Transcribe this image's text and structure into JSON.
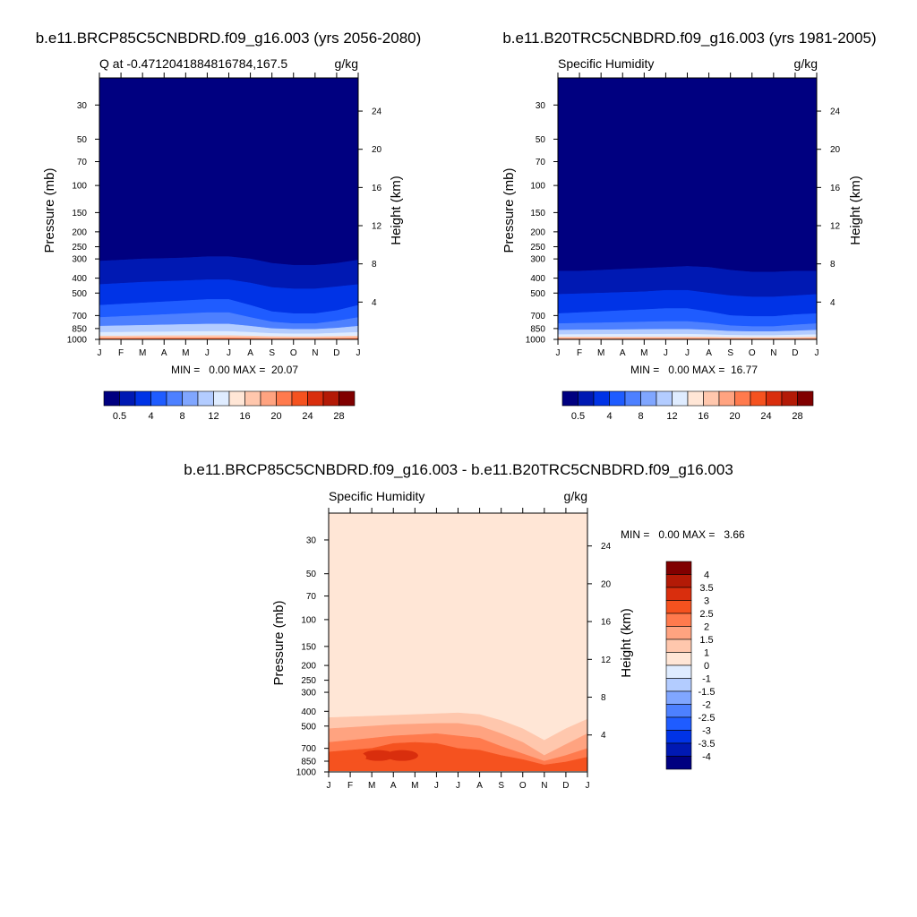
{
  "colors": {
    "q_scale": [
      "#000080",
      "#0019b3",
      "#0033e6",
      "#1f5cff",
      "#4d80ff",
      "#80a6ff",
      "#b3ccff",
      "#dfecff",
      "#ffe6d6",
      "#ffc7ad",
      "#ffa380",
      "#ff7a4d",
      "#f5521f",
      "#d92e0d",
      "#b31a06",
      "#800000"
    ],
    "diff_scale": [
      "#000080",
      "#0019b3",
      "#0033e6",
      "#1f5cff",
      "#4d80ff",
      "#80a6ff",
      "#b3ccff",
      "#dfecff",
      "#ffe6d6",
      "#ffc7ad",
      "#ffa380",
      "#ff7a4d",
      "#f5521f",
      "#d92e0d",
      "#b31a06",
      "#800000"
    ]
  },
  "chart_data": [
    {
      "type": "heatmap",
      "title": "b.e11.BRCP85C5CNBDRD.f09_g16.003 (yrs 2056-2080)",
      "subtitle_left": "Q at -0.4712041884816784,167.5",
      "subtitle_right": "g/kg",
      "ylabel": "Pressure (mb)",
      "ylabel_right": "Height (km)",
      "x": [
        "J",
        "F",
        "M",
        "A",
        "M",
        "J",
        "J",
        "A",
        "S",
        "O",
        "N",
        "D",
        "J"
      ],
      "y_ticks": [
        "30",
        "50",
        "70",
        "100",
        "150",
        "200",
        "250",
        "300",
        "400",
        "500",
        "700",
        "850",
        "1000"
      ],
      "y_right_ticks": [
        "24",
        "20",
        "16",
        "12",
        "8",
        "4"
      ],
      "stats": "MIN =   0.00 MAX =  20.07",
      "colorbar_labels": [
        "0.5",
        "4",
        "8",
        "12",
        "16",
        "20",
        "24",
        "28"
      ],
      "contour_levels_hpa": {
        "top_of_moist": [
          310,
          305,
          300,
          298,
          295,
          290,
          290,
          300,
          320,
          330,
          330,
          320,
          305
        ],
        "c1": [
          440,
          432,
          425,
          420,
          415,
          410,
          410,
          430,
          460,
          470,
          470,
          455,
          440
        ],
        "c2": [
          600,
          590,
          580,
          570,
          560,
          550,
          550,
          600,
          660,
          680,
          680,
          650,
          600
        ],
        "c3": [
          720,
          710,
          700,
          690,
          680,
          670,
          670,
          720,
          770,
          790,
          790,
          760,
          720
        ],
        "c4": [
          820,
          815,
          810,
          805,
          800,
          795,
          795,
          820,
          850,
          860,
          860,
          845,
          820
        ],
        "c5": [
          900,
          898,
          895,
          893,
          890,
          888,
          888,
          900,
          915,
          920,
          920,
          910,
          900
        ],
        "c6": [
          950,
          950,
          948,
          947,
          946,
          945,
          945,
          950,
          958,
          960,
          960,
          955,
          950
        ],
        "c7": [
          980,
          980,
          979,
          978,
          978,
          977,
          977,
          980,
          985,
          986,
          986,
          983,
          980
        ]
      }
    },
    {
      "type": "heatmap",
      "title": "b.e11.B20TRC5CNBDRD.f09_g16.003 (yrs 1981-2005)",
      "subtitle_left": "Specific Humidity",
      "subtitle_right": "g/kg",
      "ylabel": "Pressure (mb)",
      "ylabel_right": "Height (km)",
      "x": [
        "J",
        "F",
        "M",
        "A",
        "M",
        "J",
        "J",
        "A",
        "S",
        "O",
        "N",
        "D",
        "J"
      ],
      "y_ticks": [
        "30",
        "50",
        "70",
        "100",
        "150",
        "200",
        "250",
        "300",
        "400",
        "500",
        "700",
        "850",
        "1000"
      ],
      "y_right_ticks": [
        "24",
        "20",
        "16",
        "12",
        "8",
        "4"
      ],
      "stats": "MIN =   0.00 MAX =  16.77",
      "colorbar_labels": [
        "0.5",
        "4",
        "8",
        "12",
        "16",
        "20",
        "24",
        "28"
      ],
      "contour_levels_hpa": {
        "top_of_moist": [
          360,
          360,
          355,
          350,
          345,
          340,
          335,
          340,
          355,
          365,
          365,
          360,
          360
        ],
        "c1": [
          510,
          505,
          500,
          495,
          490,
          480,
          480,
          500,
          520,
          530,
          530,
          520,
          510
        ],
        "c2": [
          680,
          670,
          660,
          650,
          640,
          630,
          630,
          660,
          700,
          710,
          710,
          690,
          680
        ],
        "c3": [
          790,
          785,
          780,
          775,
          770,
          765,
          765,
          785,
          815,
          825,
          825,
          805,
          790
        ],
        "c4": [
          870,
          868,
          866,
          864,
          862,
          860,
          860,
          870,
          885,
          890,
          890,
          880,
          870
        ],
        "c5": [
          930,
          929,
          928,
          927,
          926,
          925,
          925,
          930,
          940,
          943,
          943,
          937,
          930
        ],
        "c6": [
          965,
          965,
          964,
          964,
          963,
          963,
          963,
          965,
          970,
          971,
          971,
          968,
          965
        ],
        "c7": [
          988,
          988,
          988,
          987,
          987,
          987,
          987,
          988,
          990,
          991,
          991,
          990,
          988
        ]
      }
    },
    {
      "type": "heatmap",
      "title": "b.e11.BRCP85C5CNBDRD.f09_g16.003 - b.e11.B20TRC5CNBDRD.f09_g16.003",
      "subtitle_left": "Specific Humidity",
      "subtitle_right": "g/kg",
      "ylabel": "Pressure (mb)",
      "ylabel_right": "Height (km)",
      "x": [
        "J",
        "F",
        "M",
        "A",
        "M",
        "J",
        "J",
        "A",
        "S",
        "O",
        "N",
        "D",
        "J"
      ],
      "y_ticks": [
        "30",
        "50",
        "70",
        "100",
        "150",
        "200",
        "250",
        "300",
        "400",
        "500",
        "700",
        "850",
        "1000"
      ],
      "y_right_ticks": [
        "24",
        "20",
        "16",
        "12",
        "8",
        "4"
      ],
      "stats": "MIN =   0.00 MAX =   3.66",
      "colorbar_labels": [
        "4",
        "3.5",
        "3",
        "2.5",
        "2",
        "1.5",
        "1",
        "0",
        "-1",
        "-1.5",
        "-2",
        "-2.5",
        "-3",
        "-3.5",
        "-4"
      ],
      "contour_levels_hpa": {
        "c1": [
          440,
          435,
          430,
          425,
          420,
          415,
          410,
          420,
          460,
          520,
          620,
          520,
          450
        ],
        "c2": [
          520,
          510,
          500,
          490,
          485,
          480,
          480,
          500,
          560,
          640,
          780,
          660,
          560
        ],
        "c3": [
          640,
          620,
          600,
          580,
          570,
          560,
          580,
          600,
          680,
          760,
          850,
          780,
          700
        ],
        "c4": [
          740,
          720,
          700,
          650,
          640,
          650,
          700,
          720,
          780,
          830,
          900,
          860,
          800
        ]
      }
    }
  ]
}
